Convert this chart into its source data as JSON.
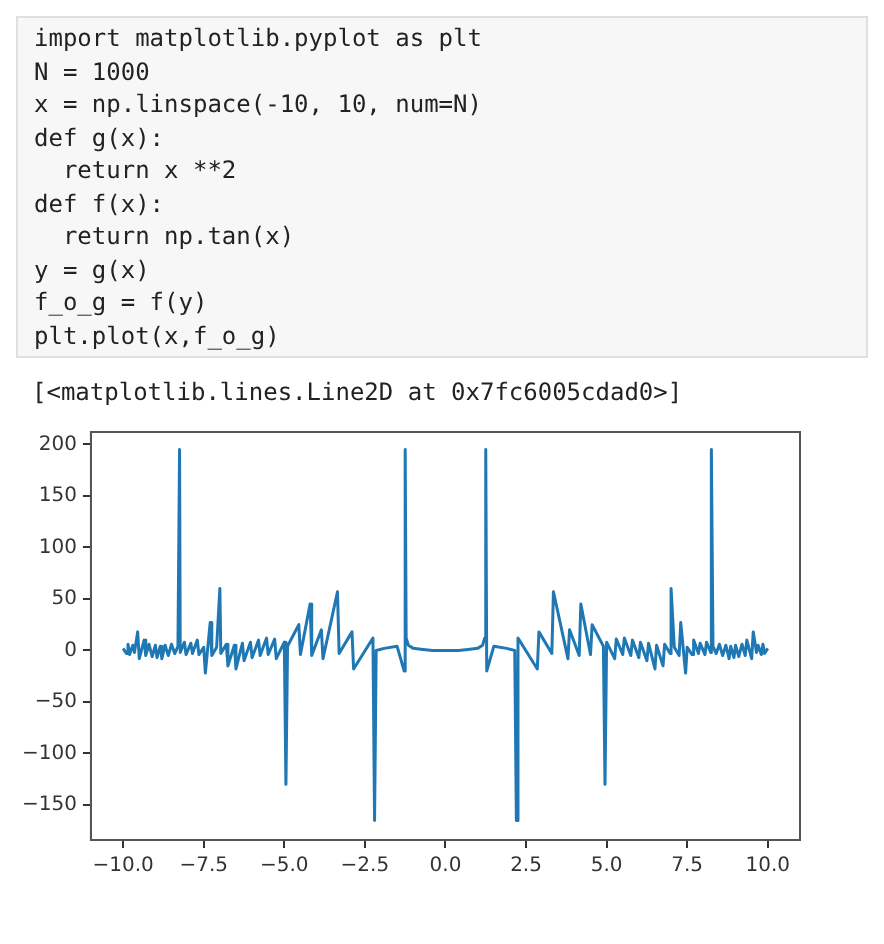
{
  "chart_data": {
    "type": "line",
    "annotations": [
      "import matplotlib.pyplot as plt",
      "N = 1000",
      "x = np.linspace(-10, 10, num=N)",
      "def g(x):",
      "  return x **2",
      "def f(x):",
      "  return np.tan(x)",
      "y = g(x)",
      "f_o_g = f(y)",
      "plt.plot(x,f_o_g)",
      "[<matplotlib.lines.Line2D at 0x7fc6005cdad0>]"
    ],
    "x": [
      -10,
      -9.9,
      -9.85,
      -9.8,
      -9.7,
      -9.65,
      -9.55,
      -9.5,
      -9.35,
      -9.3,
      -9.2,
      -9.1,
      -9.0,
      -8.95,
      -8.85,
      -8.8,
      -8.7,
      -8.6,
      -8.5,
      -8.4,
      -8.3,
      -8.25,
      -8.23,
      -8.1,
      -8.05,
      -7.9,
      -7.85,
      -7.7,
      -7.65,
      -7.5,
      -7.45,
      -7.3,
      -7.25,
      -7.1,
      -7.0,
      -6.97,
      -6.8,
      -6.75,
      -6.55,
      -6.5,
      -6.3,
      -6.25,
      -6.05,
      -6.0,
      -5.8,
      -5.75,
      -5.55,
      -5.5,
      -5.3,
      -5.25,
      -5.0,
      -4.95,
      -4.9,
      -4.55,
      -4.5,
      -4.2,
      -4.15,
      -3.85,
      -3.8,
      -3.35,
      -3.3,
      -2.9,
      -2.85,
      -2.25,
      -2.2,
      -2.15,
      -1.9,
      -1.5,
      -1.28,
      -1.25,
      -1.22,
      -1.15,
      -1.0,
      -0.7,
      -0.4,
      0,
      0.4,
      0.7,
      1.0,
      1.15,
      1.22,
      1.25,
      1.28,
      1.5,
      1.9,
      2.15,
      2.2,
      2.25,
      2.85,
      2.9,
      3.3,
      3.35,
      3.8,
      3.85,
      4.15,
      4.2,
      4.5,
      4.55,
      4.9,
      4.95,
      5.0,
      5.25,
      5.3,
      5.5,
      5.55,
      5.75,
      5.8,
      6.0,
      6.05,
      6.25,
      6.3,
      6.5,
      6.55,
      6.75,
      6.8,
      6.97,
      7.0,
      7.1,
      7.25,
      7.3,
      7.45,
      7.5,
      7.65,
      7.7,
      7.85,
      7.9,
      8.05,
      8.1,
      8.23,
      8.25,
      8.3,
      8.4,
      8.5,
      8.6,
      8.7,
      8.8,
      8.85,
      8.95,
      9.0,
      9.1,
      9.2,
      9.3,
      9.35,
      9.5,
      9.55,
      9.65,
      9.7,
      9.8,
      9.85,
      9.9,
      10
    ],
    "series": [
      {
        "color": "#1f77b4",
        "values": [
          2,
          -3,
          6,
          -4,
          5,
          -2,
          18,
          -8,
          10,
          -5,
          6,
          -6,
          5,
          -7,
          4,
          -8,
          5,
          -5,
          6,
          -3,
          4,
          195,
          -2,
          8,
          -4,
          7,
          -3,
          10,
          -4,
          3,
          -22,
          27,
          -5,
          3,
          60,
          -3,
          6,
          -15,
          5,
          -18,
          7,
          -10,
          8,
          -7,
          10,
          -5,
          12,
          -4,
          11,
          -8,
          8,
          -130,
          4,
          25,
          -4,
          45,
          -5,
          20,
          -8,
          57,
          -3,
          18,
          -18,
          12,
          -165,
          0,
          2,
          4,
          -20,
          195,
          12,
          5,
          2,
          1,
          0,
          0,
          0,
          1,
          2,
          5,
          12,
          195,
          -20,
          4,
          2,
          0,
          -165,
          12,
          -18,
          18,
          -3,
          57,
          -8,
          20,
          -5,
          45,
          -4,
          25,
          4,
          -130,
          8,
          -8,
          11,
          -4,
          12,
          -5,
          10,
          -7,
          8,
          -10,
          7,
          -18,
          5,
          -15,
          6,
          -3,
          60,
          3,
          -5,
          27,
          -22,
          3,
          -4,
          10,
          -3,
          7,
          -4,
          8,
          -2,
          195,
          4,
          -3,
          6,
          -5,
          5,
          -8,
          4,
          -7,
          5,
          -6,
          6,
          -5,
          10,
          -8,
          18,
          -2,
          5,
          -4,
          6,
          -3,
          2
        ]
      }
    ],
    "xlim": [
      -11,
      11
    ],
    "ylim": [
      -184,
      212
    ],
    "xticks": [
      {
        "value": -10,
        "label": "−10.0"
      },
      {
        "value": -7.5,
        "label": "−7.5"
      },
      {
        "value": -5,
        "label": "−5.0"
      },
      {
        "value": -2.5,
        "label": "−2.5"
      },
      {
        "value": 0,
        "label": "0.0"
      },
      {
        "value": 2.5,
        "label": "2.5"
      },
      {
        "value": 5,
        "label": "5.0"
      },
      {
        "value": 7.5,
        "label": "7.5"
      },
      {
        "value": 10,
        "label": "10.0"
      }
    ],
    "yticks": [
      {
        "value": -150,
        "label": "−150"
      },
      {
        "value": -100,
        "label": "−100"
      },
      {
        "value": -50,
        "label": "−50"
      },
      0,
      50,
      100,
      150,
      200
    ],
    "grid": false,
    "legend": false,
    "marker": "none",
    "line_style": "solid"
  }
}
